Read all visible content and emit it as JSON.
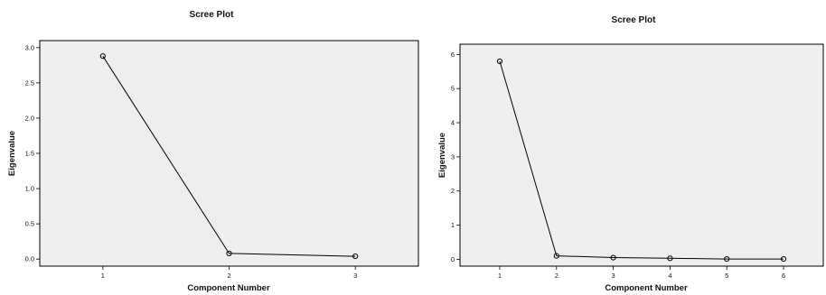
{
  "chart_data": [
    {
      "type": "line",
      "title": "Scree Plot",
      "xlabel": "Component Number",
      "ylabel": "Eigenvalue",
      "x": [
        1,
        2,
        3
      ],
      "values": [
        2.88,
        0.08,
        0.04
      ],
      "xlim": [
        0.5,
        3.5
      ],
      "ylim": [
        -0.1,
        3.1
      ],
      "xticks": [
        "1",
        "2",
        "3"
      ],
      "yticks": [
        "0.0",
        "0.5",
        "1.0",
        "1.5",
        "2.0",
        "2.5",
        "3.0"
      ],
      "grid": false,
      "markers": "circle-open"
    },
    {
      "type": "line",
      "title": "Scree Plot",
      "xlabel": "Component Number",
      "ylabel": "Eigenvalue",
      "x": [
        1,
        2,
        3,
        4,
        5,
        6
      ],
      "values": [
        5.8,
        0.1,
        0.05,
        0.03,
        0.01,
        0.01
      ],
      "xlim": [
        0.3,
        6.7
      ],
      "ylim": [
        -0.2,
        6.3
      ],
      "xticks": [
        "1",
        "2",
        "3",
        "4",
        "5",
        "6"
      ],
      "yticks": [
        "0",
        "1",
        "2",
        "3",
        "4",
        "5",
        "6"
      ],
      "grid": false,
      "markers": "circle-open"
    }
  ]
}
